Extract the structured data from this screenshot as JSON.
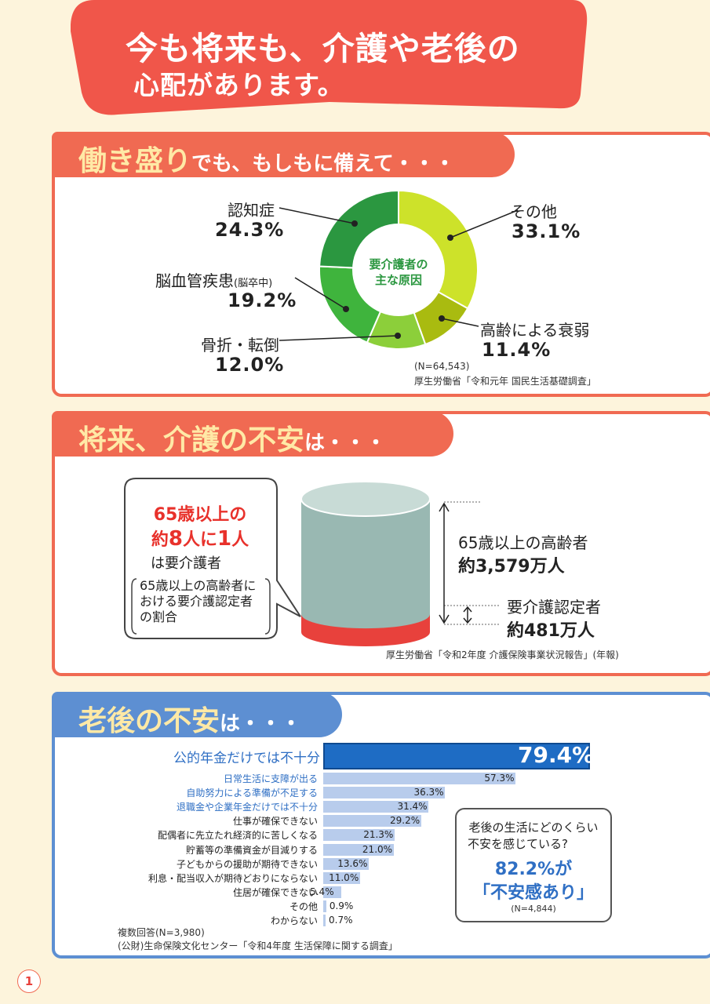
{
  "banner": {
    "line1": "今も将来も、介護や老後の",
    "line2": "心配があります。"
  },
  "section1": {
    "title_big": "働き盛り",
    "title_small": "でも、もしもに備えて・・・",
    "center_label_line1": "要介護者の",
    "center_label_line2": "主な原因",
    "source_n": "(N=64,543)",
    "source": "厚生労働省「令和元年 国民生活基礎調査」"
  },
  "chart_data": {
    "type": "pie",
    "title": "要介護者の主な原因",
    "categories": [
      "その他",
      "高齢による衰弱",
      "骨折・転倒",
      "脳血管疾患(脳卒中)",
      "認知症"
    ],
    "values": [
      33.1,
      11.4,
      12.0,
      19.2,
      24.3
    ],
    "unit": "%",
    "colors": [
      "#cde22a",
      "#a9bb10",
      "#8ccf3a",
      "#3fb43d",
      "#2b9740"
    ]
  },
  "donut_labels": {
    "other": {
      "name": "その他",
      "value": "33.1%"
    },
    "aging": {
      "name": "高齢による衰弱",
      "value": "11.4%"
    },
    "fracture": {
      "name": "骨折・転倒",
      "value": "12.0%"
    },
    "stroke": {
      "name": "脳血管疾患",
      "name_sub": "(脳卒中)",
      "value": "19.2%"
    },
    "dementia": {
      "name": "認知症",
      "value": "24.3%"
    }
  },
  "section2": {
    "title_big": "将来、介護の不安",
    "title_small": "は・・・",
    "bubble_line1": "65歳以上の",
    "bubble_line2_a": "約",
    "bubble_line2_b": "8",
    "bubble_line2_c": "人に",
    "bubble_line2_d": "1",
    "bubble_line2_e": "人",
    "bubble_line3": "は要介護者",
    "bubble_note1": "65歳以上の高齢者に",
    "bubble_note2": "おける要介護認定者",
    "bubble_note3": "の割合",
    "elderly_name": "65歳以上の高齢者",
    "elderly_value": "約3,579万人",
    "care_name": "要介護認定者",
    "care_value": "約481万人",
    "elderly_count": 3579,
    "care_count": 481,
    "source": "厚生労働省「令和2年度 介護保険事業状況報告」(年報)"
  },
  "section3": {
    "title_big": "老後の不安",
    "title_small": "は・・・",
    "top_label": "公的年金だけでは不十分",
    "top_value": "79.4%",
    "top_number": 79.4,
    "bars": [
      {
        "label": "日常生活に支障が出る",
        "value": 57.3,
        "text": "57.3%",
        "color": "blue"
      },
      {
        "label": "自助努力による準備が不足する",
        "value": 36.3,
        "text": "36.3%",
        "color": "blue"
      },
      {
        "label": "退職金や企業年金だけでは不十分",
        "value": 31.4,
        "text": "31.4%",
        "color": "blue"
      },
      {
        "label": "仕事が確保できない",
        "value": 29.2,
        "text": "29.2%",
        "color": "black"
      },
      {
        "label": "配偶者に先立たれ経済的に苦しくなる",
        "value": 21.3,
        "text": "21.3%",
        "color": "black"
      },
      {
        "label": "貯蓄等の準備資金が目減りする",
        "value": 21.0,
        "text": "21.0%",
        "color": "black"
      },
      {
        "label": "子どもからの援助が期待できない",
        "value": 13.6,
        "text": "13.6%",
        "color": "black"
      },
      {
        "label": "利息・配当収入が期待どおりにならない",
        "value": 11.0,
        "text": "11.0%",
        "color": "black"
      },
      {
        "label": "住居が確保できない",
        "value": 5.4,
        "text": "5.4%",
        "color": "black"
      },
      {
        "label": "その他",
        "value": 0.9,
        "text": "0.9%",
        "color": "black"
      },
      {
        "label": "わからない",
        "value": 0.7,
        "text": "0.7%",
        "color": "black"
      }
    ],
    "note1": "複数回答(N=3,980)",
    "note2": "(公財)生命保険文化センター「令和4年度 生活保障に関する調査」",
    "callout_q1": "老後の生活にどのくらい",
    "callout_q2": "不安を感じている?",
    "callout_big1": "82.2%が",
    "callout_big2": "「不安感あり」",
    "callout_n": "(N=4,844)"
  },
  "page_number": "1"
}
